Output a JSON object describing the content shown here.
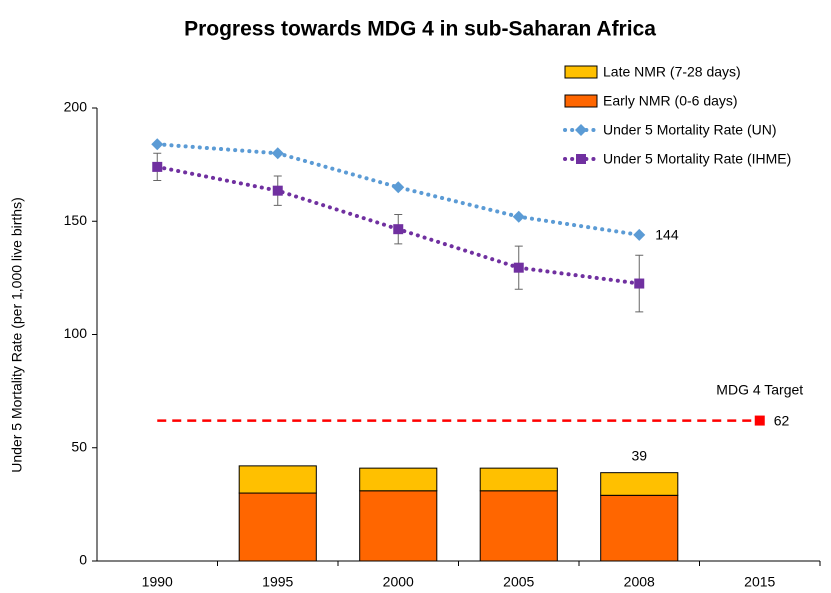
{
  "chart_data": {
    "type": "bar",
    "title": "Progress towards MDG 4 in sub-Saharan Africa",
    "y_label": "Under 5 Mortality Rate (per 1,000 live births)",
    "categories": [
      "1990",
      "1995",
      "2000",
      "2005",
      "2008",
      "2015"
    ],
    "ylim": [
      0,
      200
    ],
    "yticks": [
      0,
      50,
      100,
      150,
      200
    ],
    "grid": false,
    "legend": "top-right",
    "stacked_series": [
      {
        "name": "Early NMR (0-6 days)",
        "color": "#ff6600",
        "values": [
          null,
          30,
          31,
          31,
          29,
          null
        ]
      },
      {
        "name": "Late NMR (7-28 days)",
        "color": "#ffc000",
        "values": [
          null,
          12,
          10,
          10,
          10,
          null
        ]
      }
    ],
    "line_series": [
      {
        "name": "Under 5 Mortality Rate (UN)",
        "color": "#5b9bd5",
        "marker": "diamond",
        "values": [
          184,
          180,
          165,
          152,
          144,
          null
        ],
        "value_labels": [
          null,
          null,
          null,
          null,
          "144",
          null
        ]
      },
      {
        "name": "Under 5 Mortality Rate (IHME)",
        "color": "#7030a0",
        "marker": "square",
        "values": [
          174,
          163.5,
          146.5,
          129.5,
          122.5,
          null
        ],
        "errors": [
          6,
          6.5,
          6.5,
          9.5,
          12.5,
          null
        ]
      }
    ],
    "annotations": [
      {
        "label": "39",
        "category": "2008",
        "value": 39
      }
    ],
    "target": {
      "label": "MDG 4 Target",
      "value": 62,
      "color": "#ff0000"
    }
  }
}
